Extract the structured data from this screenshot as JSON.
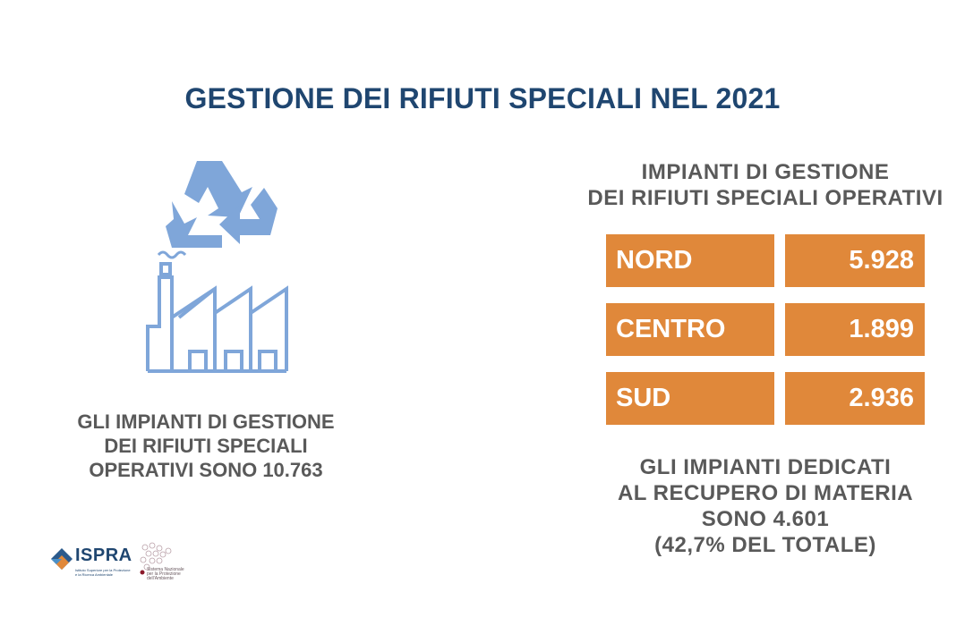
{
  "title": "GESTIONE DEI RIFIUTI SPECIALI NEL 2021",
  "left_text": [
    "GLI IMPIANTI DI GESTIONE",
    "DEI RIFIUTI SPECIALI",
    "OPERATIVI SONO 10.763"
  ],
  "right_heading": [
    "IMPIANTI DI GESTIONE",
    "DEI RIFIUTI SPECIALI OPERATIVI"
  ],
  "regions": [
    {
      "name": "NORD",
      "value": "5.928"
    },
    {
      "name": "CENTRO",
      "value": "1.899"
    },
    {
      "name": "SUD",
      "value": "2.936"
    }
  ],
  "right_footer": [
    "GLI IMPIANTI DEDICATI",
    "AL RECUPERO DI MATERIA",
    "SONO 4.601",
    "(42,7% DEL TOTALE)"
  ],
  "logos": {
    "ispra_name": "ISPRA",
    "ispra_sub": [
      "Istituto Superiore per la Protezione",
      "e la Ricerca Ambientale"
    ],
    "snpa_sub": [
      "Sistema Nazionale",
      "per la Protezione",
      "dell'Ambiente"
    ]
  },
  "icons": [
    "recycle-icon",
    "factory-icon"
  ],
  "colors": {
    "title": "#1f4670",
    "text": "#595959",
    "accent": "#e0883a",
    "icon": "#7fa6d9"
  }
}
